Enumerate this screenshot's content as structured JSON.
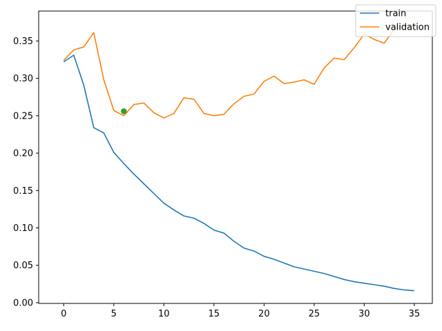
{
  "chart_data": {
    "type": "line",
    "title": "",
    "xlabel": "",
    "ylabel": "",
    "xlim": [
      -2.5,
      36.8
    ],
    "ylim": [
      -0.001,
      0.39
    ],
    "x_ticks": [
      0,
      5,
      10,
      15,
      20,
      25,
      30,
      35
    ],
    "y_ticks": [
      0.0,
      0.05,
      0.1,
      0.15,
      0.2,
      0.25,
      0.3,
      0.35
    ],
    "x_tick_labels": [
      "0",
      "5",
      "10",
      "15",
      "20",
      "25",
      "30",
      "35"
    ],
    "y_tick_labels": [
      "0.00",
      "0.05",
      "0.10",
      "0.15",
      "0.20",
      "0.25",
      "0.30",
      "0.35"
    ],
    "grid": false,
    "legend_position": "top-right",
    "series": [
      {
        "name": "train",
        "color": "#1f77b4",
        "x": [
          0,
          1,
          2,
          3,
          4,
          5,
          6,
          7,
          8,
          9,
          10,
          11,
          12,
          13,
          14,
          15,
          16,
          17,
          18,
          19,
          20,
          21,
          22,
          23,
          24,
          25,
          26,
          27,
          28,
          29,
          30,
          31,
          32,
          33,
          34,
          35
        ],
        "values": [
          0.322,
          0.331,
          0.291,
          0.234,
          0.227,
          0.201,
          0.186,
          0.172,
          0.159,
          0.146,
          0.133,
          0.124,
          0.116,
          0.113,
          0.106,
          0.097,
          0.093,
          0.082,
          0.073,
          0.069,
          0.062,
          0.058,
          0.053,
          0.048,
          0.045,
          0.042,
          0.039,
          0.035,
          0.031,
          0.028,
          0.026,
          0.024,
          0.022,
          0.019,
          0.017,
          0.016
        ]
      },
      {
        "name": "validation",
        "color": "#ff7f0e",
        "x": [
          0,
          1,
          2,
          3,
          4,
          5,
          6,
          7,
          8,
          9,
          10,
          11,
          12,
          13,
          14,
          15,
          16,
          17,
          18,
          19,
          20,
          21,
          22,
          23,
          24,
          25,
          26,
          27,
          28,
          29,
          30,
          31,
          32,
          33,
          34,
          35
        ],
        "values": [
          0.324,
          0.338,
          0.342,
          0.361,
          0.298,
          0.257,
          0.25,
          0.265,
          0.267,
          0.254,
          0.247,
          0.253,
          0.274,
          0.272,
          0.253,
          0.25,
          0.252,
          0.266,
          0.276,
          0.279,
          0.296,
          0.303,
          0.293,
          0.295,
          0.298,
          0.292,
          0.314,
          0.327,
          0.325,
          0.341,
          0.359,
          0.352,
          0.347,
          0.366,
          0.37,
          0.372
        ]
      }
    ],
    "markers": [
      {
        "x": 6,
        "y": 0.256,
        "color": "#2ca02c"
      }
    ]
  }
}
